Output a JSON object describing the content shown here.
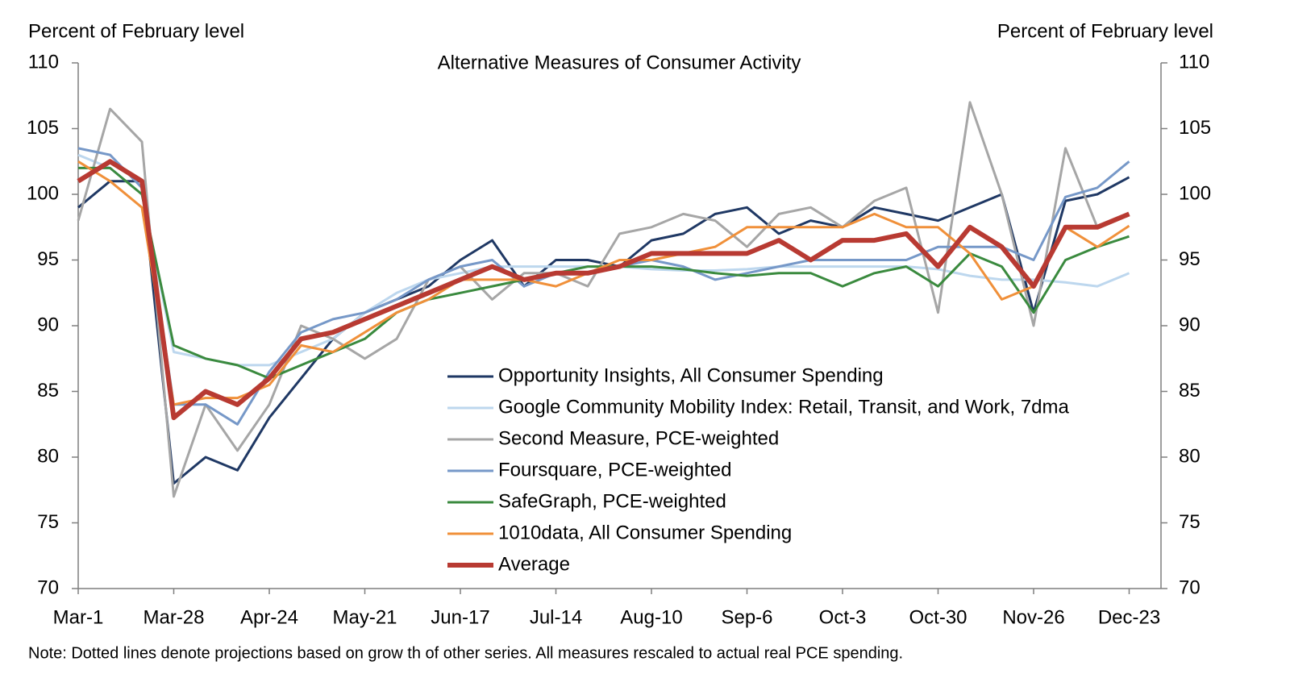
{
  "chart_data": {
    "type": "line",
    "title": "Alternative  Measures  of  Consumer  Activity",
    "y_label": "Percent of February  level",
    "y2_label": "Percent of February  level",
    "note": "Note:  Dotted  lines  denote  projections  based  on  grow th of other  series.  All  measures  rescaled to actual  real PCE  spending.",
    "categories": [
      "Mar-1",
      null,
      null,
      "Mar-28",
      null,
      null,
      "Apr-24",
      null,
      null,
      "May-21",
      null,
      null,
      "Jun-17",
      null,
      null,
      "Jul-14",
      null,
      null,
      "Aug-10",
      null,
      null,
      "Sep-6",
      null,
      null,
      "Oct-3",
      null,
      null,
      "Oct-30",
      null,
      null,
      "Nov-26",
      null,
      null,
      "Dec-23"
    ],
    "ylim": [
      70,
      110
    ],
    "yticks": [
      70,
      75,
      80,
      85,
      90,
      95,
      100,
      105,
      110
    ],
    "y2lim": [
      70,
      110
    ],
    "y2ticks": [
      70,
      75,
      80,
      85,
      90,
      95,
      100,
      105,
      110
    ],
    "series": [
      {
        "name": "Opportunity Insights, All Consumer Spending",
        "color": "#1f3864",
        "width": 3,
        "values": [
          99,
          101,
          101,
          78,
          80,
          79,
          83,
          86,
          89,
          91,
          92,
          93,
          95,
          96.5,
          93,
          95,
          95,
          94.5,
          96.5,
          97,
          98.5,
          99,
          97,
          98,
          97.5,
          99,
          98.5,
          98,
          99,
          100,
          91,
          99.5,
          100,
          101.3
        ]
      },
      {
        "name": "Google Community Mobility Index: Retail, Transit, and Work, 7dma",
        "color": "#bdd7ee",
        "width": 3,
        "values": [
          103,
          102,
          100,
          88,
          87.5,
          87,
          87,
          88,
          89,
          91,
          92.5,
          93.5,
          94,
          94.5,
          94.5,
          94.5,
          94.5,
          94.5,
          94.3,
          94.2,
          94.2,
          94.3,
          94.5,
          94.5,
          94.5,
          94.5,
          94.5,
          94.3,
          93.8,
          93.5,
          93.5,
          93.3,
          93,
          94
        ]
      },
      {
        "name": "Second Measure, PCE-weighted",
        "color": "#a6a6a6",
        "width": 3,
        "values": [
          98,
          106.5,
          104,
          77,
          84,
          80.5,
          84,
          90,
          89,
          87.5,
          89,
          93.5,
          94.5,
          92,
          94,
          94,
          93,
          97,
          97.5,
          98.5,
          98,
          96,
          98.5,
          99,
          97.5,
          99.5,
          100.5,
          91,
          107,
          100,
          90,
          103.5,
          97.5,
          98.5
        ]
      },
      {
        "name": "Foursquare, PCE-weighted",
        "color": "#7698c8",
        "width": 3,
        "values": [
          103.5,
          103,
          100.5,
          84,
          84,
          82.5,
          86.5,
          89.5,
          90.5,
          91,
          92,
          93.5,
          94.5,
          95,
          93,
          94,
          94,
          94.5,
          95,
          94.5,
          93.5,
          94,
          94.5,
          95,
          95,
          95,
          95,
          96,
          96,
          96,
          95,
          99.8,
          100.5,
          102.5
        ]
      },
      {
        "name": "SafeGraph, PCE-weighted",
        "color": "#3a8a3e",
        "width": 3,
        "values": [
          102,
          102,
          100,
          88.5,
          87.5,
          87,
          86,
          87,
          88,
          89,
          91,
          92,
          92.5,
          93,
          93.5,
          94,
          94.5,
          94.5,
          94.5,
          94.3,
          94,
          93.8,
          94,
          94,
          93,
          94,
          94.5,
          93,
          95.5,
          94.5,
          91,
          95,
          96,
          96.8
        ]
      },
      {
        "name": "1010data, All Consumer Spending",
        "color": "#f0903a",
        "width": 3,
        "values": [
          102.5,
          101,
          99,
          84,
          84.5,
          84.5,
          85.5,
          88.5,
          88,
          89.5,
          91,
          92,
          93.5,
          93.5,
          93.5,
          93,
          94,
          95,
          95,
          95.5,
          96,
          97.5,
          97.5,
          97.5,
          97.5,
          98.5,
          97.5,
          97.5,
          95.5,
          92,
          93,
          97.5,
          96,
          97.6
        ]
      },
      {
        "name": "Average",
        "color": "#b83a32",
        "width": 6,
        "values": [
          101,
          102.5,
          101,
          83,
          85,
          84,
          86,
          89,
          89.5,
          90.5,
          91.5,
          92.5,
          93.5,
          94.5,
          93.5,
          94,
          94,
          94.5,
          95.5,
          95.5,
          95.5,
          95.5,
          96.5,
          95,
          96.5,
          96.5,
          97,
          94.5,
          97.5,
          96,
          93,
          97.5,
          97.5,
          98.5
        ]
      }
    ]
  }
}
